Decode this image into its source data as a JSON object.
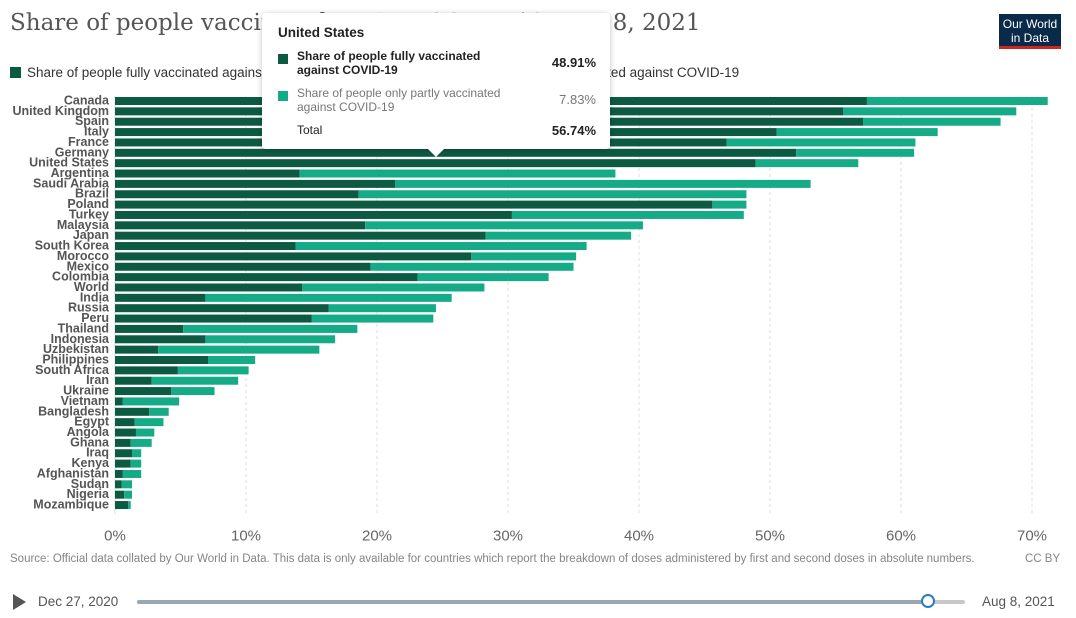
{
  "header": {
    "title": "Share of people vaccinated against COVID-19, Aug 8, 2021",
    "logo_line1": "Our World",
    "logo_line2": "in Data"
  },
  "legend": {
    "fully_label": "Share of people fully vaccinated against COVID-19",
    "partly_label": "Share of people only partly vaccinated against COVID-19"
  },
  "colors": {
    "fully": "#0d5a43",
    "partly": "#14ab86",
    "grid": "#dddddd",
    "tick": "#666666"
  },
  "tooltip": {
    "country": "United States",
    "fully_label": "Share of people fully vaccinated against COVID-19",
    "fully_value": "48.91%",
    "partly_label": "Share of people only partly vaccinated against COVID-19",
    "partly_value": "7.83%",
    "total_label": "Total",
    "total_value": "56.74%"
  },
  "footer": {
    "source": "Source: Official data collated by Our World in Data. This data is only available for countries which report the breakdown of doses administered by first and second doses in absolute numbers.",
    "license": "CC BY"
  },
  "timeline": {
    "start_label": "Dec 27, 2020",
    "end_label": "Aug 8, 2021",
    "position_fraction": 0.955
  },
  "chart_data": {
    "type": "bar",
    "orientation": "horizontal",
    "stacked": true,
    "xlim": [
      0,
      72
    ],
    "x_ticks": [
      "0%",
      "10%",
      "20%",
      "30%",
      "40%",
      "50%",
      "60%",
      "70%"
    ],
    "x_tick_values": [
      0,
      10,
      20,
      30,
      40,
      50,
      60,
      70
    ],
    "grid": "vertical dashed",
    "categories": [
      "Canada",
      "United Kingdom",
      "Spain",
      "Italy",
      "France",
      "Germany",
      "United States",
      "Argentina",
      "Saudi Arabia",
      "Brazil",
      "Poland",
      "Turkey",
      "Malaysia",
      "Japan",
      "South Korea",
      "Morocco",
      "Mexico",
      "Colombia",
      "World",
      "India",
      "Russia",
      "Peru",
      "Thailand",
      "Indonesia",
      "Uzbekistan",
      "Philippines",
      "South Africa",
      "Iran",
      "Ukraine",
      "Vietnam",
      "Bangladesh",
      "Egypt",
      "Angola",
      "Ghana",
      "Iraq",
      "Kenya",
      "Afghanistan",
      "Sudan",
      "Nigeria",
      "Mozambique"
    ],
    "series": [
      {
        "name": "Share of people fully vaccinated against COVID-19",
        "values": [
          57.4,
          55.6,
          57.1,
          50.5,
          46.7,
          52.0,
          48.91,
          14.1,
          21.4,
          18.6,
          45.6,
          30.3,
          19.1,
          28.3,
          13.8,
          27.2,
          19.5,
          23.1,
          14.3,
          6.9,
          16.3,
          15.0,
          5.2,
          6.9,
          3.3,
          7.1,
          4.8,
          2.8,
          4.3,
          0.6,
          2.6,
          1.5,
          1.6,
          1.2,
          1.3,
          1.2,
          0.6,
          0.5,
          0.7,
          1.0
        ]
      },
      {
        "name": "Share of people only partly vaccinated against COVID-19",
        "values": [
          13.8,
          13.2,
          10.5,
          12.3,
          14.4,
          9.0,
          7.83,
          24.1,
          31.7,
          29.6,
          2.6,
          17.7,
          21.2,
          11.1,
          22.2,
          8.0,
          15.5,
          10.0,
          13.9,
          18.8,
          8.2,
          9.3,
          13.3,
          9.9,
          12.3,
          3.6,
          5.4,
          6.6,
          3.3,
          4.3,
          1.5,
          2.2,
          1.4,
          1.6,
          0.7,
          0.8,
          1.4,
          0.8,
          0.6,
          0.2
        ]
      }
    ]
  }
}
